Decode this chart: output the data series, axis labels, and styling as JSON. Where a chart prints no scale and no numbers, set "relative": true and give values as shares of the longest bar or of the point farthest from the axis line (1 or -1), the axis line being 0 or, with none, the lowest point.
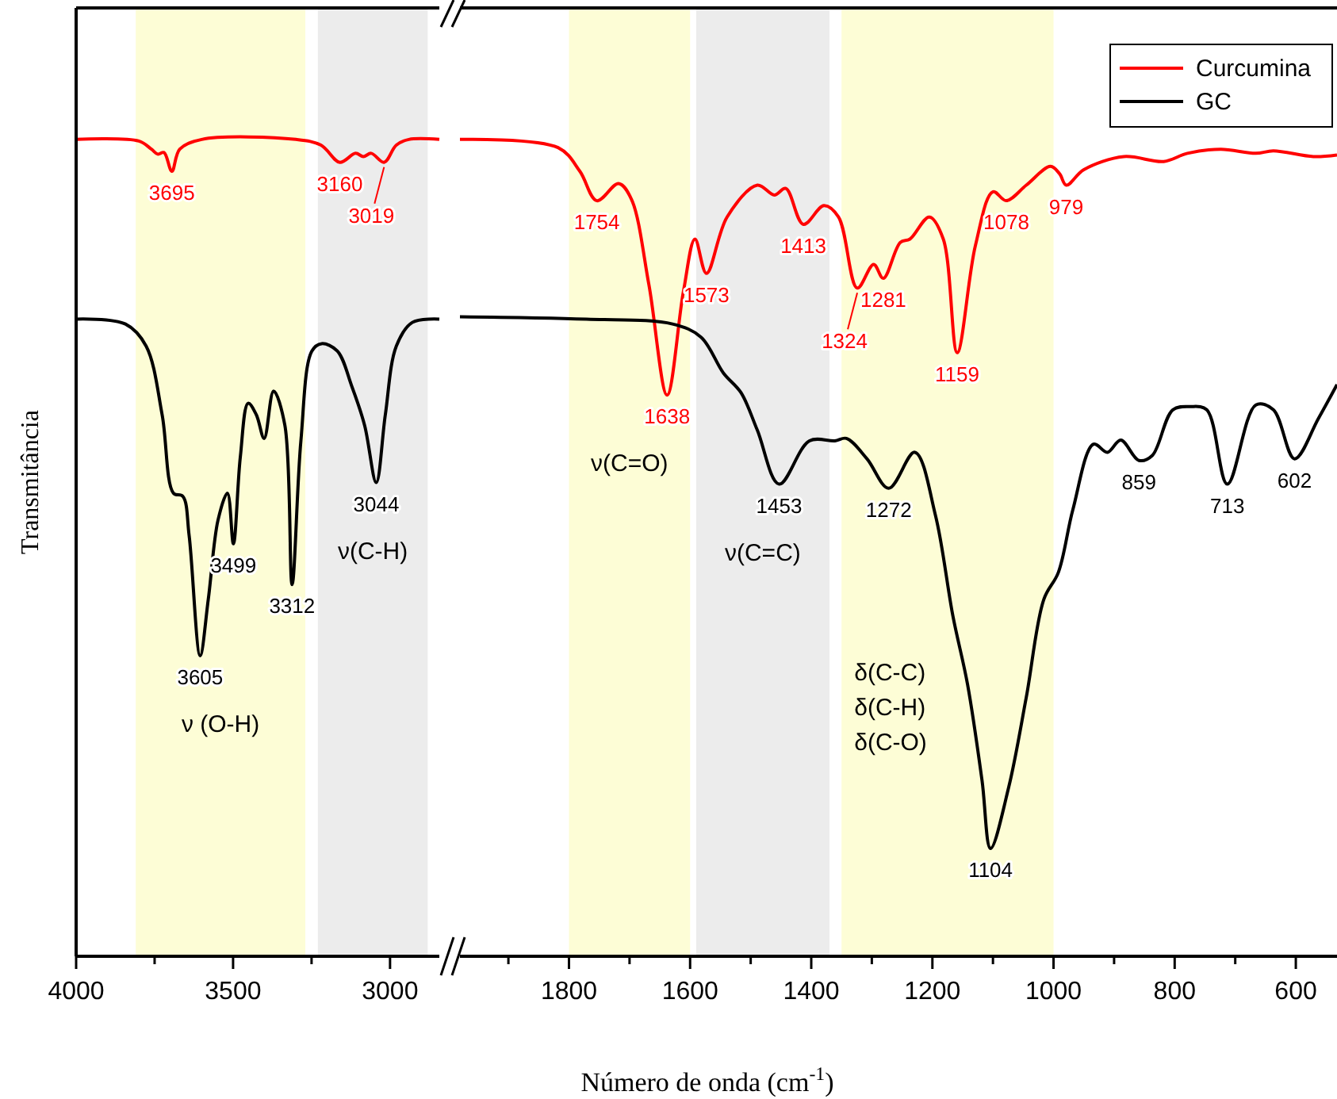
{
  "chart_data": [
    {
      "type": "line",
      "relative": true,
      "ylabel": "Transmitância",
      "xlim": [
        4000,
        2843
      ],
      "xticks": [
        4000,
        {
          "value": 3750,
          "label": null
        },
        3500,
        {
          "value": 3250,
          "label": null
        },
        3000
      ],
      "tick_labels": "x",
      "grid": false,
      "legend": false,
      "line_style": "solid",
      "marker": "none",
      "bands": [
        {
          "axis": "x",
          "from": 3810,
          "to": 3270,
          "label": "ν (O-H)",
          "color": "#fdfdd6"
        },
        {
          "axis": "x",
          "from": 3230,
          "to": 2880,
          "label": "ν(C-H)",
          "color": "#ececec"
        }
      ],
      "series": [
        {
          "color": "#ff0000",
          "x": [
            4000,
            3800,
            3760,
            3740,
            3720,
            3695,
            3670,
            3600,
            3300,
            3220,
            3160,
            3110,
            3085,
            3060,
            3019,
            2980,
            2940,
            2843
          ],
          "values": [
            1,
            0.998,
            0.988,
            0.982,
            0.984,
            0.961,
            0.988,
            1,
            1,
            0.993,
            0.972,
            0.983,
            0.979,
            0.983,
            0.972,
            0.993,
            1,
            1
          ]
        },
        {
          "color": "#000000",
          "x": [
            4000,
            3843,
            3777,
            3726,
            3690,
            3660,
            3640,
            3605,
            3579,
            3548,
            3518,
            3499,
            3477,
            3452,
            3426,
            3401,
            3371,
            3335,
            3312,
            3284,
            3249,
            3218,
            3168,
            3122,
            3081,
            3044,
            3015,
            2980,
            2929,
            2843
          ],
          "values": [
            0.78,
            0.774,
            0.747,
            0.663,
            0.567,
            0.563,
            0.515,
            0.368,
            0.437,
            0.534,
            0.567,
            0.505,
            0.611,
            0.677,
            0.663,
            0.634,
            0.692,
            0.65,
            0.455,
            0.631,
            0.741,
            0.75,
            0.741,
            0.698,
            0.65,
            0.58,
            0.663,
            0.747,
            0.776,
            0.78
          ]
        }
      ],
      "annotations": [
        {
          "text": "3695",
          "x": 3695,
          "y": 0.961
        },
        {
          "text": "3160",
          "x": 3160,
          "y": 0.972
        },
        {
          "text": "3019",
          "x": 3019,
          "y": 0.972
        },
        {
          "text": "3605",
          "x": 3605,
          "y": 0.368
        },
        {
          "text": "3499",
          "x": 3499,
          "y": 0.505
        },
        {
          "text": "3312",
          "x": 3312,
          "y": 0.455
        },
        {
          "text": "3044",
          "x": 3044,
          "y": 0.58
        }
      ]
    },
    {
      "type": "line",
      "relative": true,
      "xlabel": "Número de onda (cm$^{-1}$)",
      "xlim": [
        1980,
        532
      ],
      "xticks": [
        {
          "value": 1900,
          "label": null
        },
        1800,
        {
          "value": 1700,
          "label": null
        },
        1600,
        {
          "value": 1500,
          "label": null
        },
        1400,
        {
          "value": 1300,
          "label": null
        },
        1200,
        {
          "value": 1100,
          "label": null
        },
        1000,
        {
          "value": 900,
          "label": null
        },
        800,
        {
          "value": 700,
          "label": null
        },
        600
      ],
      "tick_labels": "x",
      "grid": false,
      "legend": "top right",
      "line_style": "solid",
      "marker": "none",
      "bands": [
        {
          "axis": "x",
          "from": 1800,
          "to": 1600,
          "label": "ν(C=O)",
          "color": "#fdfdd6"
        },
        {
          "axis": "x",
          "from": 1590,
          "to": 1370,
          "label": "ν(C=C)",
          "color": "#ececec"
        },
        {
          "axis": "x",
          "from": 1350,
          "to": 1000,
          "label": "δ(C-C)\nδ(C-H)\nδ(C-O)",
          "color": "#fdfdd6"
        }
      ],
      "series": [
        {
          "name": "Curcumina",
          "color": "#ff0000",
          "x": [
            1980,
            1818,
            1782,
            1754,
            1718,
            1697,
            1668,
            1638,
            1611,
            1592,
            1573,
            1539,
            1489,
            1461,
            1442,
            1413,
            1379,
            1355,
            1324,
            1297,
            1281,
            1253,
            1237,
            1205,
            1182,
            1159,
            1129,
            1100,
            1078,
            1045,
            1005,
            990,
            979,
            950,
            884,
            818,
            779,
            724,
            666,
            637,
            571,
            532
          ],
          "values": [
            1,
            0.99,
            0.961,
            0.925,
            0.946,
            0.927,
            0.822,
            0.687,
            0.814,
            0.878,
            0.836,
            0.905,
            0.944,
            0.932,
            0.94,
            0.896,
            0.919,
            0.905,
            0.818,
            0.847,
            0.83,
            0.874,
            0.878,
            0.905,
            0.878,
            0.739,
            0.87,
            0.936,
            0.925,
            0.944,
            0.967,
            0.958,
            0.944,
            0.963,
            0.979,
            0.973,
            0.983,
            0.988,
            0.983,
            0.986,
            0.979,
            0.981
          ]
        },
        {
          "name": "GC",
          "color": "#000000",
          "x": [
            1980,
            1771,
            1629,
            1582,
            1545,
            1516,
            1489,
            1453,
            1403,
            1361,
            1342,
            1308,
            1272,
            1229,
            1195,
            1166,
            1142,
            1118,
            1104,
            1074,
            1045,
            1016,
            992,
            968,
            934,
            911,
            889,
            859,
            837,
            803,
            774,
            747,
            713,
            666,
            637,
            602,
            563,
            532
          ],
          "values": [
            0.783,
            0.78,
            0.774,
            0.758,
            0.714,
            0.69,
            0.644,
            0.578,
            0.631,
            0.631,
            0.634,
            0.609,
            0.573,
            0.617,
            0.54,
            0.416,
            0.333,
            0.215,
            0.132,
            0.207,
            0.317,
            0.437,
            0.47,
            0.547,
            0.627,
            0.617,
            0.632,
            0.607,
            0.613,
            0.669,
            0.673,
            0.669,
            0.578,
            0.675,
            0.669,
            0.609,
            0.658,
            0.7
          ]
        }
      ],
      "annotations": [
        {
          "text": "1754",
          "x": 1754,
          "y": 0.925
        },
        {
          "text": "1638",
          "x": 1638,
          "y": 0.687
        },
        {
          "text": "1573",
          "x": 1573,
          "y": 0.836
        },
        {
          "text": "1413",
          "x": 1413,
          "y": 0.896
        },
        {
          "text": "1281",
          "x": 1281,
          "y": 0.83
        },
        {
          "text": "1324",
          "x": 1324,
          "y": 0.818
        },
        {
          "text": "1159",
          "x": 1159,
          "y": 0.739
        },
        {
          "text": "1078",
          "x": 1078,
          "y": 0.925
        },
        {
          "text": "979",
          "x": 979,
          "y": 0.944
        },
        {
          "text": "1453",
          "x": 1453,
          "y": 0.578
        },
        {
          "text": "1272",
          "x": 1272,
          "y": 0.573
        },
        {
          "text": "1104",
          "x": 1104,
          "y": 0.132
        },
        {
          "text": "859",
          "x": 859,
          "y": 0.607
        },
        {
          "text": "713",
          "x": 713,
          "y": 0.578
        },
        {
          "text": "602",
          "x": 602,
          "y": 0.609
        }
      ]
    }
  ]
}
